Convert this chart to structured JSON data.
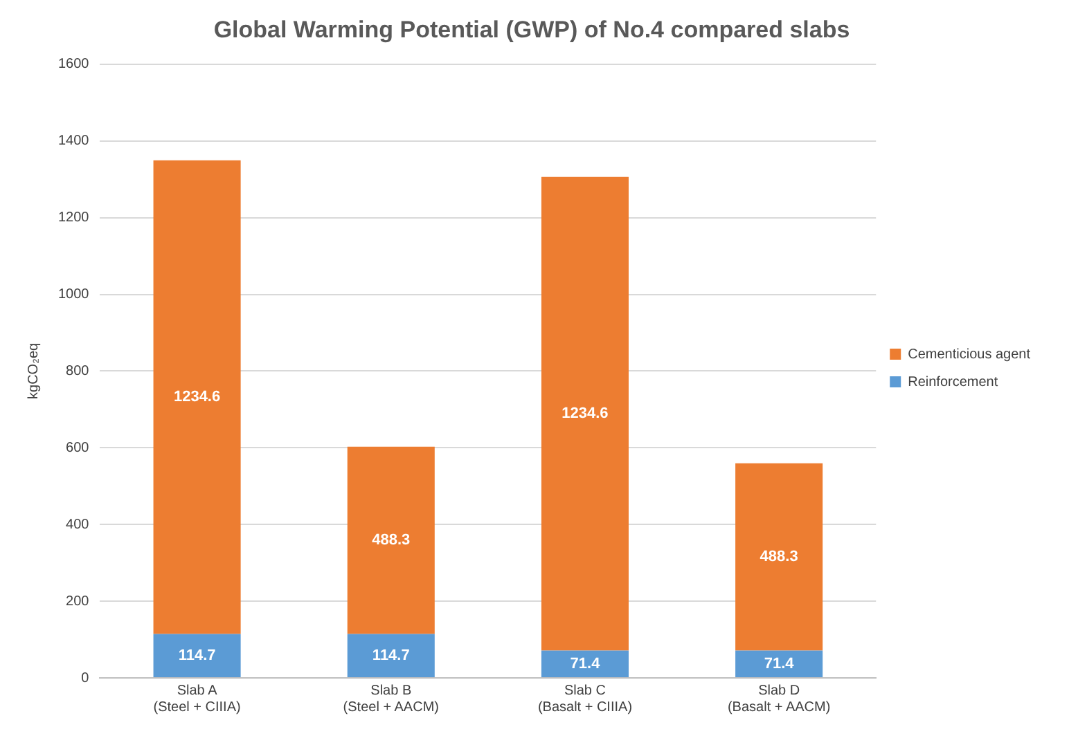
{
  "chart_data": {
    "type": "bar",
    "title": "Global Warming Potential (GWP) of No.4 compared slabs",
    "ylabel": "kgCO₂eq",
    "categories": [
      "Slab A\n(Steel + CIIIA)",
      "Slab B\n(Steel + AACM)",
      "Slab C\n(Basalt + CIIIA)",
      "Slab D\n(Basalt + AACM)"
    ],
    "series": [
      {
        "name": "Reinforcement",
        "color": "#5b9bd5",
        "values": [
          114.7,
          114.7,
          71.4,
          71.4
        ]
      },
      {
        "name": "Cementicious agent",
        "color": "#ed7d31",
        "values": [
          1234.6,
          488.3,
          1234.6,
          488.3
        ]
      }
    ],
    "stacked": true,
    "ylim": [
      0,
      1600
    ],
    "yticks": [
      0,
      200,
      400,
      600,
      800,
      1000,
      1200,
      1400,
      1600
    ],
    "grid": "y",
    "legend": "right",
    "data_labels": true
  }
}
